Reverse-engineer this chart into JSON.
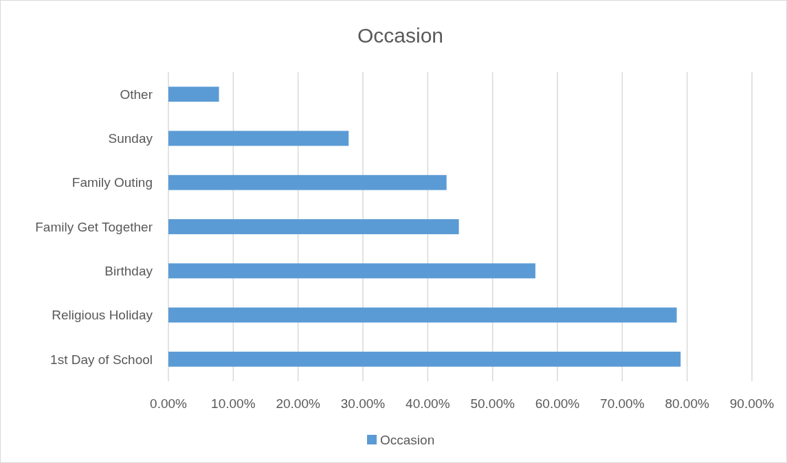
{
  "chart_data": {
    "type": "bar",
    "orientation": "horizontal",
    "title": "Occasion",
    "categories": [
      "Other",
      "Sunday",
      "Family Outing",
      "Family Get Together",
      "Birthday",
      "Religious Holiday",
      "1st Day of School"
    ],
    "series": [
      {
        "name": "Occasion",
        "color": "#5b9bd5",
        "values": [
          7.8,
          27.8,
          42.9,
          44.8,
          56.6,
          78.4,
          79.0
        ]
      }
    ],
    "xlim": [
      0,
      90
    ],
    "xticks": [
      {
        "value": 0,
        "label": "0.00%"
      },
      {
        "value": 10,
        "label": "10.00%"
      },
      {
        "value": 20,
        "label": "20.00%"
      },
      {
        "value": 30,
        "label": "30.00%"
      },
      {
        "value": 40,
        "label": "40.00%"
      },
      {
        "value": 50,
        "label": "50.00%"
      },
      {
        "value": 60,
        "label": "60.00%"
      },
      {
        "value": 70,
        "label": "70.00%"
      },
      {
        "value": 80,
        "label": "80.00%"
      },
      {
        "value": 90,
        "label": "90.00%"
      }
    ],
    "grid": "x",
    "legend": "bottom"
  }
}
